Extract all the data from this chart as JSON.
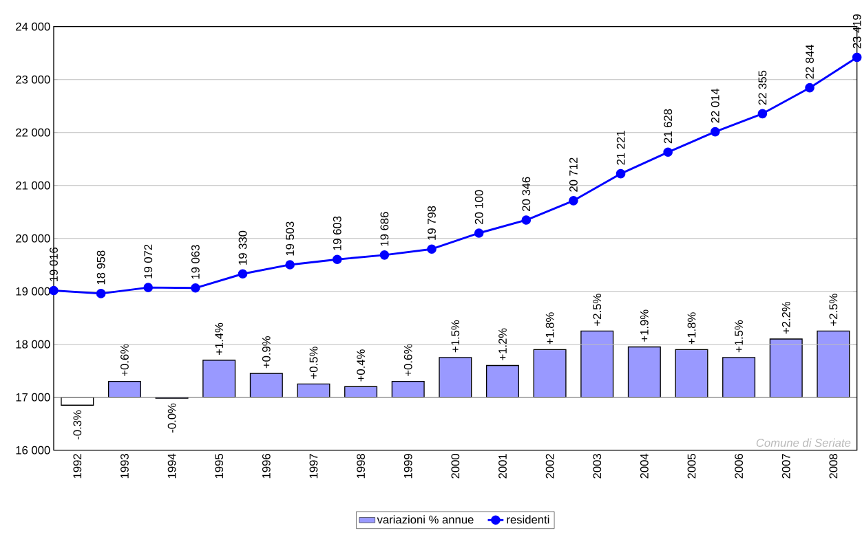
{
  "chart_data": {
    "type": "bar",
    "x": [
      1992,
      1993,
      1994,
      1995,
      1996,
      1997,
      1998,
      1999,
      2000,
      2001,
      2002,
      2003,
      2004,
      2005,
      2006,
      2007,
      2008
    ],
    "xlim": [
      1991.5,
      2008.5
    ],
    "xticks": [
      1992,
      1993,
      1994,
      1995,
      1996,
      1997,
      1998,
      1999,
      2000,
      2001,
      2002,
      2003,
      2004,
      2005,
      2006,
      2007,
      2008
    ],
    "ylim": [
      16000,
      24000
    ],
    "yticks": [
      {
        "value": 16000,
        "label": "16 000"
      },
      {
        "value": 17000,
        "label": "17 000"
      },
      {
        "value": 18000,
        "label": "18 000"
      },
      {
        "value": 19000,
        "label": "19 000"
      },
      {
        "value": 20000,
        "label": "20 000"
      },
      {
        "value": 21000,
        "label": "21 000"
      },
      {
        "value": 22000,
        "label": "22 000"
      },
      {
        "value": 23000,
        "label": "23 000"
      },
      {
        "value": 24000,
        "label": "24 000"
      }
    ],
    "y2lim": [
      -2,
      14
    ],
    "grid": "y",
    "legend": "bottom",
    "annotations": [
      "Comune di Seriate"
    ],
    "series": [
      {
        "name": "variazioni % annue",
        "axis": "y2",
        "colors": [
          "#ffffff",
          "#9999ff",
          "#9999ff",
          "#9999ff",
          "#9999ff",
          "#9999ff",
          "#9999ff",
          "#9999ff",
          "#9999ff",
          "#9999ff",
          "#9999ff",
          "#9999ff",
          "#9999ff",
          "#9999ff",
          "#9999ff",
          "#9999ff",
          "#9999ff"
        ],
        "values": [
          -0.3,
          0.6,
          -0.04,
          1.4,
          0.9,
          0.5,
          0.4,
          0.6,
          1.5,
          1.2,
          1.8,
          2.5,
          1.9,
          1.8,
          1.5,
          2.2,
          2.5
        ],
        "value_labels": [
          "-0.3%",
          "+0.6%",
          "-0.0%",
          "+1.4%",
          "+0.9%",
          "+0.5%",
          "+0.4%",
          "+0.6%",
          "+1.5%",
          "+1.2%",
          "+1.8%",
          "+2.5%",
          "+1.9%",
          "+1.8%",
          "+1.5%",
          "+2.2%",
          "+2.5%"
        ]
      },
      {
        "name": "residenti",
        "type": "line",
        "color": "#0000ff",
        "marker": "circle",
        "x": [
          1991.5,
          1992.5,
          1993.5,
          1994.5,
          1995.5,
          1996.5,
          1997.5,
          1998.5,
          1999.5,
          2000.5,
          2001.5,
          2002.5,
          2003.5,
          2004.5,
          2005.5,
          2006.5,
          2007.5,
          2008.5
        ],
        "values": [
          19016,
          18958,
          19072,
          19063,
          19330,
          19503,
          19603,
          19686,
          19798,
          20100,
          20346,
          20712,
          21221,
          21628,
          22014,
          22355,
          22844,
          23419
        ],
        "value_labels": [
          "19 016",
          "18 958",
          "19 072",
          "19 063",
          "19 330",
          "19 503",
          "19 603",
          "19 686",
          "19 798",
          "20 100",
          "20 346",
          "20 712",
          "21 221",
          "21 628",
          "22 014",
          "22 355",
          "22 844",
          "23 419"
        ]
      }
    ]
  }
}
